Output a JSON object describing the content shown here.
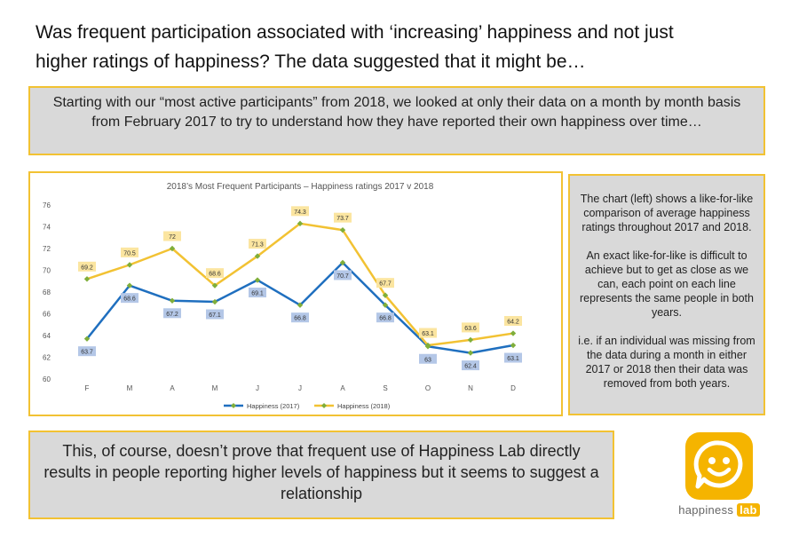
{
  "title": {
    "line1": "Was frequent participation associated with ‘increasing’ happiness and not just",
    "line2": "higher ratings of happiness?  The data suggested that it might be…"
  },
  "intro_text": "Starting with our “most active participants” from 2018, we looked at only their data on a month by month basis from February 2017 to try to understand how they have reported their own happiness over time…",
  "side_box": {
    "p1": "The chart (left) shows a like-for-like comparison of average happiness ratings throughout 2017 and 2018.",
    "p2": "An exact like-for-like is difficult to achieve but to get as close as we can, each point on each line represents the same people in both years.",
    "p3": "i.e. if an individual was missing from the data during a month in either 2017 or 2018 then their data was removed from both years."
  },
  "bottom_text": "This, of course, doesn’t prove that frequent use of Happiness Lab directly results in people reporting higher levels of happiness but it seems to suggest a relationship",
  "logo": {
    "word1": "happiness",
    "word2": "lab",
    "icon": "smiley-chat-icon",
    "color": "#f5b400"
  },
  "chart_data": {
    "type": "line",
    "title": "2018’s Most Frequent Participants – Happiness ratings 2017 v 2018",
    "categories": [
      "F",
      "M",
      "A",
      "M",
      "J",
      "J",
      "A",
      "S",
      "O",
      "N",
      "D"
    ],
    "ylim": [
      60,
      76
    ],
    "yticks": [
      60,
      62,
      64,
      66,
      68,
      70,
      72,
      74,
      76
    ],
    "grid": false,
    "legend_position": "bottom",
    "series": [
      {
        "name": "Happiness (2017)",
        "color": "#1f6fbf",
        "label_bg": "#b4c7e7",
        "values": [
          63.7,
          68.6,
          67.2,
          67.1,
          69.1,
          66.8,
          70.7,
          66.8,
          63,
          62.4,
          63.1
        ]
      },
      {
        "name": "Happiness (2018)",
        "color": "#f2c233",
        "label_bg": "#fbe5a0",
        "values": [
          69.2,
          70.5,
          72,
          68.6,
          71.3,
          74.3,
          73.7,
          67.7,
          63.1,
          63.6,
          64.2
        ]
      }
    ],
    "marker_color": "#7fae3a"
  }
}
